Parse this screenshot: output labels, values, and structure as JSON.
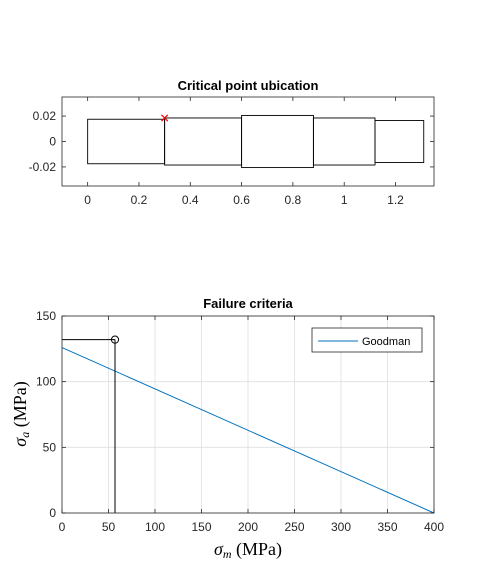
{
  "colors": {
    "background": "#ffffff",
    "axis": "#262626",
    "grid": "#dfdfdf",
    "goodman": "#0072bd",
    "marker_red": "#ff0000",
    "outline": "#000000"
  },
  "chart_data": [
    {
      "type": "line",
      "title": "Critical point ubication",
      "xlim": [
        -0.1,
        1.35
      ],
      "ylim": [
        -0.035,
        0.035
      ],
      "xticks": [
        0,
        0.2,
        0.4,
        0.6,
        0.8,
        1,
        1.2
      ],
      "xtick_labels": [
        "0",
        "0.2",
        "0.4",
        "0.6",
        "0.8",
        "1",
        "1.2"
      ],
      "yticks": [
        -0.02,
        0,
        0.02
      ],
      "ytick_labels": [
        "-0.02",
        "0",
        "0.02"
      ],
      "grid": false,
      "sections": [
        {
          "x0": 0.0,
          "x1": 0.3,
          "r": 0.0175
        },
        {
          "x0": 0.3,
          "x1": 0.6,
          "r": 0.0185
        },
        {
          "x0": 0.6,
          "x1": 0.88,
          "r": 0.0205
        },
        {
          "x0": 0.88,
          "x1": 1.12,
          "r": 0.0185
        },
        {
          "x0": 1.12,
          "x1": 1.31,
          "r": 0.0165
        }
      ],
      "critical_point": {
        "x": 0.3,
        "y": 0.0185,
        "marker": "x"
      }
    },
    {
      "type": "line",
      "title": "Failure criteria",
      "xlabel": "σ",
      "xlabel_sub": "m",
      "xlabel_unit": " (MPa)",
      "ylabel": "σ",
      "ylabel_sub": "a",
      "ylabel_unit": " (MPa)",
      "xlim": [
        0,
        400
      ],
      "ylim": [
        0,
        150
      ],
      "xticks": [
        0,
        50,
        100,
        150,
        200,
        250,
        300,
        350,
        400
      ],
      "xtick_labels": [
        "0",
        "50",
        "100",
        "150",
        "200",
        "250",
        "300",
        "350",
        "400"
      ],
      "yticks": [
        0,
        50,
        100,
        150
      ],
      "ytick_labels": [
        "0",
        "50",
        "100",
        "150"
      ],
      "grid": true,
      "legend_position": "top-right",
      "series": [
        {
          "name": "Goodman",
          "x": [
            0,
            400
          ],
          "y": [
            126,
            0
          ]
        }
      ],
      "operating_point": {
        "x": 57,
        "y": 132,
        "marker": "o"
      },
      "guide_lines": {
        "x": 57,
        "y": 132
      }
    }
  ]
}
